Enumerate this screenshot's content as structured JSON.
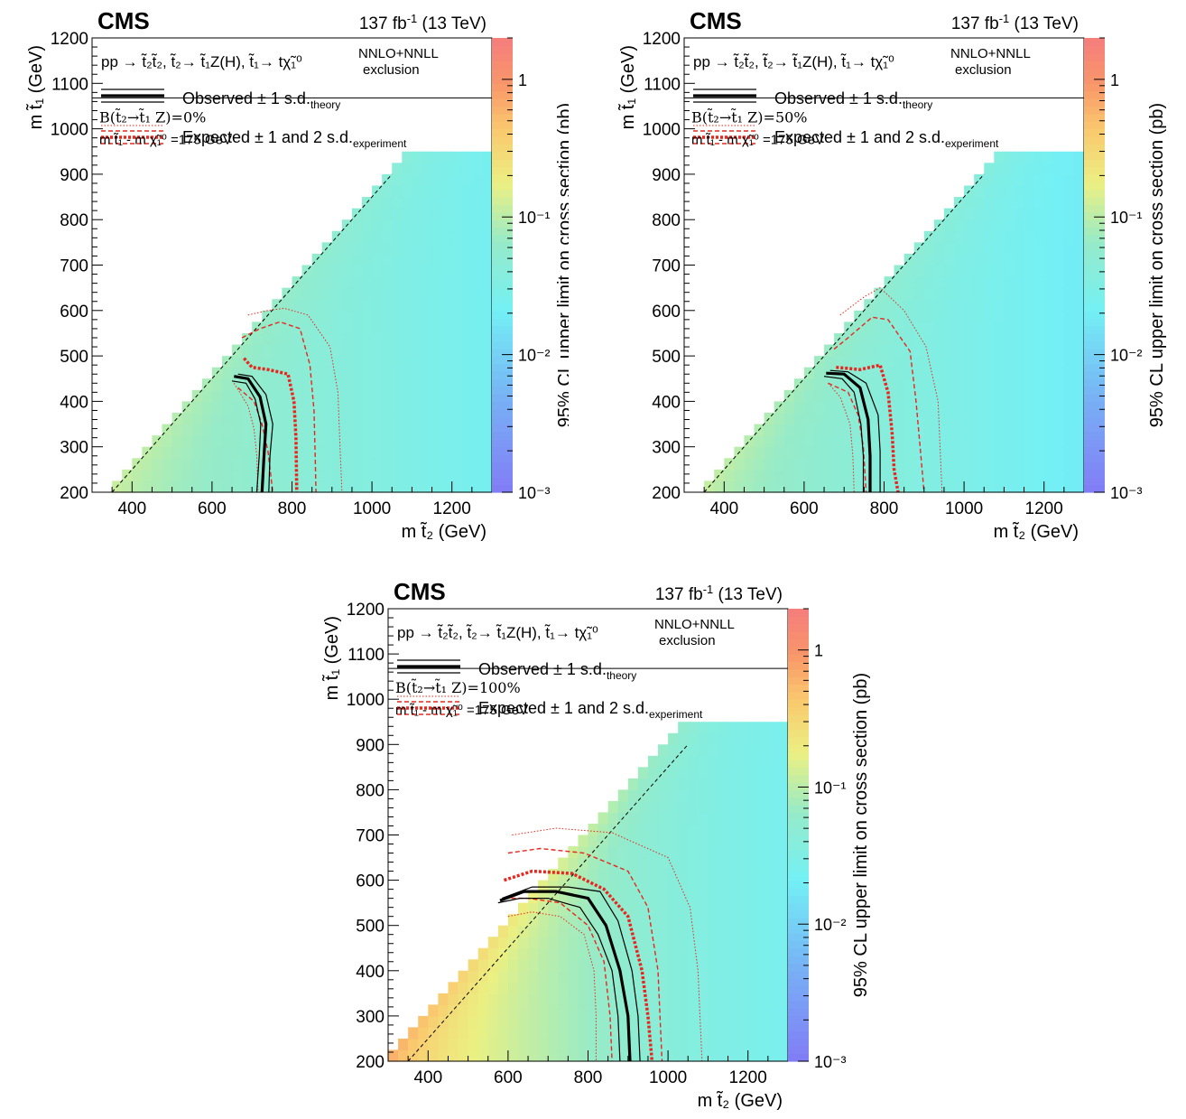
{
  "chart_data": [
    {
      "type": "heatmap",
      "experiment": "CMS",
      "lumi": "137 fb",
      "lumi_exp": "-1",
      "energy": "(13 TeV)",
      "process": "pp → t̃₂t̃₂, t̃₂→ t̃₁Z(H), t̃₁→ tχ̃₁⁰",
      "xsec_label_1": "NNLO+NNLL",
      "xsec_label_2": "exclusion",
      "legend_observed": "Observed ± 1 s.d.",
      "legend_observed_sub": "theory",
      "legend_expected": "Expected ± 1 and 2 s.d.",
      "legend_expected_sub": "experiment",
      "branching": "B(t̃₂→t̃₁ Z)=0%",
      "mass_splitting": "m t̃₁ - m χ̃₁⁰ =175 GeV",
      "xlabel": "m t̃₂ (GeV)",
      "ylabel": "m t̃₁ (GeV)",
      "zlabel": "95% CL upper limit on cross section (pb)",
      "xlim": [
        300,
        1300
      ],
      "ylim": [
        200,
        1200
      ],
      "zlim": [
        0.001,
        2
      ],
      "z_log": true,
      "x_ticks": [
        "400",
        "600",
        "800",
        "1000",
        "1200"
      ],
      "y_ticks": [
        "200",
        "300",
        "400",
        "500",
        "600",
        "700",
        "800",
        "900",
        "1000",
        "1100",
        "1200"
      ],
      "z_ticks": [
        "1",
        "10⁻¹",
        "10⁻²",
        "10⁻³"
      ],
      "diagonal_note": "dashed line m t̃₂ = m t̃₁ + 150 GeV",
      "observed": [
        [
          655,
          455
        ],
        [
          690,
          450
        ],
        [
          720,
          410
        ],
        [
          735,
          350
        ],
        [
          730,
          280
        ],
        [
          725,
          200
        ]
      ],
      "observed_up": [
        [
          665,
          460
        ],
        [
          700,
          455
        ],
        [
          735,
          415
        ],
        [
          752,
          350
        ],
        [
          745,
          280
        ],
        [
          742,
          200
        ]
      ],
      "observed_down": [
        [
          650,
          445
        ],
        [
          685,
          440
        ],
        [
          708,
          405
        ],
        [
          722,
          350
        ],
        [
          718,
          280
        ],
        [
          712,
          200
        ]
      ],
      "expected": [
        [
          680,
          495
        ],
        [
          700,
          475
        ],
        [
          740,
          470
        ],
        [
          790,
          460
        ],
        [
          805,
          400
        ],
        [
          810,
          320
        ],
        [
          812,
          200
        ]
      ],
      "expected_1sd_up": [
        [
          675,
          540
        ],
        [
          720,
          560
        ],
        [
          770,
          575
        ],
        [
          820,
          560
        ],
        [
          845,
          480
        ],
        [
          855,
          380
        ],
        [
          858,
          280
        ],
        [
          860,
          200
        ]
      ],
      "expected_1sd_down": [
        [
          665,
          430
        ],
        [
          705,
          400
        ],
        [
          725,
          350
        ],
        [
          740,
          290
        ],
        [
          752,
          200
        ]
      ],
      "expected_2sd_up": [
        [
          690,
          590
        ],
        [
          740,
          600
        ],
        [
          780,
          605
        ],
        [
          840,
          590
        ],
        [
          895,
          520
        ],
        [
          915,
          420
        ],
        [
          920,
          300
        ],
        [
          925,
          200
        ]
      ],
      "expected_2sd_down": [
        [
          655,
          440
        ],
        [
          690,
          390
        ],
        [
          705,
          340
        ],
        [
          712,
          280
        ],
        [
          715,
          200
        ]
      ]
    },
    {
      "type": "heatmap",
      "experiment": "CMS",
      "lumi": "137 fb",
      "lumi_exp": "-1",
      "energy": "(13 TeV)",
      "process": "pp → t̃₂t̃₂, t̃₂→ t̃₁Z(H), t̃₁→ tχ̃₁⁰",
      "xsec_label_1": "NNLO+NNLL",
      "xsec_label_2": "exclusion",
      "legend_observed": "Observed ± 1 s.d.",
      "legend_observed_sub": "theory",
      "legend_expected": "Expected ± 1 and 2 s.d.",
      "legend_expected_sub": "experiment",
      "branching": "B(t̃₂→t̃₁ Z)=50%",
      "mass_splitting": "m t̃₁ - m χ̃₁⁰ =175 GeV",
      "xlabel": "m t̃₂ (GeV)",
      "ylabel": "m t̃₁ (GeV)",
      "zlabel": "95% CL upper limit on cross section (pb)",
      "xlim": [
        300,
        1300
      ],
      "ylim": [
        200,
        1200
      ],
      "zlim": [
        0.001,
        2
      ],
      "z_log": true,
      "x_ticks": [
        "400",
        "600",
        "800",
        "1000",
        "1200"
      ],
      "y_ticks": [
        "200",
        "300",
        "400",
        "500",
        "600",
        "700",
        "800",
        "900",
        "1000",
        "1100",
        "1200"
      ],
      "z_ticks": [
        "1",
        "10⁻¹",
        "10⁻²",
        "10⁻³"
      ],
      "observed": [
        [
          655,
          462
        ],
        [
          700,
          460
        ],
        [
          740,
          430
        ],
        [
          760,
          360
        ],
        [
          765,
          280
        ],
        [
          765,
          200
        ]
      ],
      "observed_up": [
        [
          665,
          468
        ],
        [
          710,
          465
        ],
        [
          755,
          440
        ],
        [
          785,
          370
        ],
        [
          790,
          290
        ],
        [
          790,
          200
        ]
      ],
      "observed_down": [
        [
          650,
          455
        ],
        [
          695,
          450
        ],
        [
          725,
          420
        ],
        [
          742,
          350
        ],
        [
          748,
          280
        ],
        [
          748,
          200
        ]
      ],
      "expected": [
        [
          680,
          475
        ],
        [
          740,
          470
        ],
        [
          790,
          480
        ],
        [
          810,
          420
        ],
        [
          820,
          330
        ],
        [
          825,
          250
        ],
        [
          835,
          200
        ]
      ],
      "expected_1sd_up": [
        [
          675,
          515
        ],
        [
          710,
          540
        ],
        [
          770,
          585
        ],
        [
          810,
          580
        ],
        [
          865,
          510
        ],
        [
          880,
          400
        ],
        [
          890,
          300
        ],
        [
          900,
          200
        ]
      ],
      "expected_1sd_down": [
        [
          660,
          440
        ],
        [
          710,
          420
        ],
        [
          735,
          370
        ],
        [
          748,
          300
        ],
        [
          755,
          200
        ]
      ],
      "expected_2sd_up": [
        [
          690,
          590
        ],
        [
          750,
          630
        ],
        [
          790,
          650
        ],
        [
          850,
          600
        ],
        [
          905,
          520
        ],
        [
          935,
          400
        ],
        [
          940,
          300
        ],
        [
          945,
          200
        ]
      ],
      "expected_2sd_down": [
        [
          660,
          440
        ],
        [
          690,
          410
        ],
        [
          715,
          350
        ],
        [
          722,
          280
        ],
        [
          725,
          200
        ]
      ]
    },
    {
      "type": "heatmap",
      "experiment": "CMS",
      "lumi": "137 fb",
      "lumi_exp": "-1",
      "energy": "(13 TeV)",
      "process": "pp → t̃₂t̃₂, t̃₂→ t̃₁Z(H), t̃₁→ tχ̃₁⁰",
      "xsec_label_1": "NNLO+NNLL",
      "xsec_label_2": "exclusion",
      "legend_observed": "Observed ± 1 s.d.",
      "legend_observed_sub": "theory",
      "legend_expected": "Expected ± 1 and 2 s.d.",
      "legend_expected_sub": "experiment",
      "branching": "B(t̃₂→t̃₁ Z)=100%",
      "mass_splitting": "m t̃₁ - m χ̃₁⁰ =175 GeV",
      "xlabel": "m t̃₂ (GeV)",
      "ylabel": "m t̃₁ (GeV)",
      "zlabel": "95% CL upper limit on cross section (pb)",
      "xlim": [
        300,
        1300
      ],
      "ylim": [
        200,
        1200
      ],
      "zlim": [
        0.001,
        2
      ],
      "z_log": true,
      "x_ticks": [
        "400",
        "600",
        "800",
        "1000",
        "1200"
      ],
      "y_ticks": [
        "200",
        "300",
        "400",
        "500",
        "600",
        "700",
        "800",
        "900",
        "1000",
        "1100",
        "1200"
      ],
      "z_ticks": [
        "1",
        "10⁻¹",
        "10⁻²",
        "10⁻³"
      ],
      "observed": [
        [
          580,
          555
        ],
        [
          640,
          575
        ],
        [
          720,
          575
        ],
        [
          800,
          560
        ],
        [
          845,
          500
        ],
        [
          880,
          400
        ],
        [
          900,
          300
        ],
        [
          905,
          200
        ]
      ],
      "observed_up": [
        [
          585,
          560
        ],
        [
          660,
          585
        ],
        [
          750,
          585
        ],
        [
          830,
          575
        ],
        [
          875,
          510
        ],
        [
          910,
          400
        ],
        [
          925,
          300
        ],
        [
          930,
          200
        ]
      ],
      "observed_down": [
        [
          575,
          550
        ],
        [
          630,
          560
        ],
        [
          700,
          560
        ],
        [
          780,
          540
        ],
        [
          825,
          480
        ],
        [
          860,
          400
        ],
        [
          875,
          300
        ],
        [
          880,
          200
        ]
      ],
      "expected": [
        [
          590,
          600
        ],
        [
          660,
          620
        ],
        [
          760,
          615
        ],
        [
          840,
          580
        ],
        [
          900,
          520
        ],
        [
          935,
          400
        ],
        [
          950,
          300
        ],
        [
          960,
          200
        ]
      ],
      "expected_1sd_up": [
        [
          600,
          660
        ],
        [
          680,
          670
        ],
        [
          790,
          660
        ],
        [
          900,
          620
        ],
        [
          950,
          540
        ],
        [
          975,
          400
        ],
        [
          980,
          300
        ],
        [
          985,
          200
        ]
      ],
      "expected_1sd_down": [
        [
          590,
          560
        ],
        [
          650,
          560
        ],
        [
          730,
          550
        ],
        [
          800,
          500
        ],
        [
          840,
          420
        ],
        [
          855,
          300
        ],
        [
          860,
          200
        ]
      ],
      "expected_2sd_up": [
        [
          610,
          700
        ],
        [
          720,
          715
        ],
        [
          860,
          705
        ],
        [
          1000,
          650
        ],
        [
          1055,
          540
        ],
        [
          1075,
          400
        ],
        [
          1080,
          300
        ],
        [
          1085,
          200
        ]
      ],
      "expected_2sd_down": [
        [
          600,
          520
        ],
        [
          660,
          530
        ],
        [
          730,
          520
        ],
        [
          790,
          480
        ],
        [
          815,
          400
        ],
        [
          820,
          300
        ],
        [
          820,
          200
        ]
      ]
    }
  ]
}
